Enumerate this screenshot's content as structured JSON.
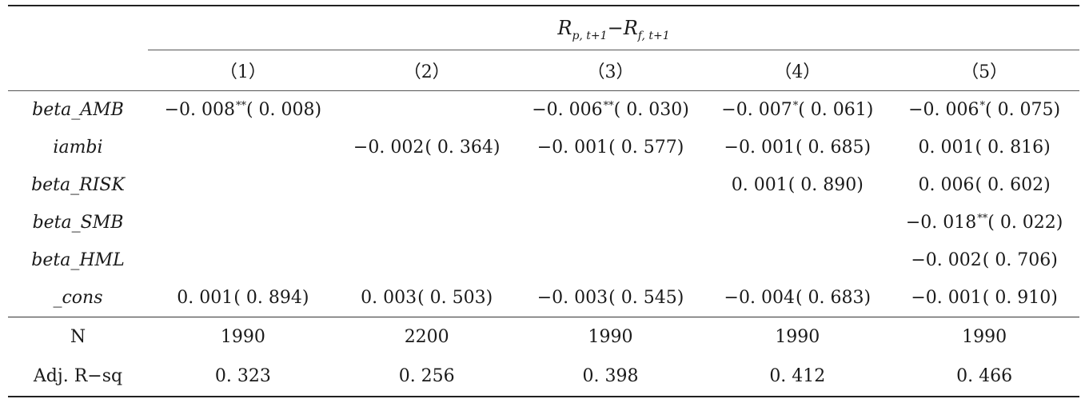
{
  "header": {
    "dependent_var": {
      "r1": "R",
      "r1_sub": "p, t+1",
      "minus": "−",
      "r2": "R",
      "r2_sub": "f, t+1"
    },
    "columns": [
      "（1）",
      "（2）",
      "（3）",
      "（4）",
      "（5）"
    ]
  },
  "rows": [
    {
      "label": "beta_AMB",
      "cells": [
        {
          "coef": "−0. 008",
          "stars": "**",
          "p": "( 0. 008)"
        },
        {
          "coef": "",
          "stars": "",
          "p": ""
        },
        {
          "coef": "−0. 006",
          "stars": "**",
          "p": "( 0. 030)"
        },
        {
          "coef": "−0. 007",
          "stars": "*",
          "p": "( 0. 061)"
        },
        {
          "coef": "−0. 006",
          "stars": "*",
          "p": "( 0. 075)"
        }
      ]
    },
    {
      "label": "iambi",
      "cells": [
        {
          "coef": "",
          "stars": "",
          "p": ""
        },
        {
          "coef": "−0. 002",
          "stars": "",
          "p": "( 0. 364)"
        },
        {
          "coef": "−0. 001",
          "stars": "",
          "p": "( 0. 577)"
        },
        {
          "coef": "−0. 001",
          "stars": "",
          "p": "( 0. 685)"
        },
        {
          "coef": "0. 001",
          "stars": "",
          "p": "( 0. 816)"
        }
      ]
    },
    {
      "label": "beta_RISK",
      "cells": [
        {
          "coef": "",
          "stars": "",
          "p": ""
        },
        {
          "coef": "",
          "stars": "",
          "p": ""
        },
        {
          "coef": "",
          "stars": "",
          "p": ""
        },
        {
          "coef": "0. 001",
          "stars": "",
          "p": "( 0. 890)"
        },
        {
          "coef": "0. 006",
          "stars": "",
          "p": "( 0. 602)"
        }
      ]
    },
    {
      "label": "beta_SMB",
      "cells": [
        {
          "coef": "",
          "stars": "",
          "p": ""
        },
        {
          "coef": "",
          "stars": "",
          "p": ""
        },
        {
          "coef": "",
          "stars": "",
          "p": ""
        },
        {
          "coef": "",
          "stars": "",
          "p": ""
        },
        {
          "coef": "−0. 018",
          "stars": "**",
          "p": "( 0. 022)"
        }
      ]
    },
    {
      "label": "beta_HML",
      "cells": [
        {
          "coef": "",
          "stars": "",
          "p": ""
        },
        {
          "coef": "",
          "stars": "",
          "p": ""
        },
        {
          "coef": "",
          "stars": "",
          "p": ""
        },
        {
          "coef": "",
          "stars": "",
          "p": ""
        },
        {
          "coef": "−0. 002",
          "stars": "",
          "p": "( 0. 706)"
        }
      ]
    },
    {
      "label": "_cons",
      "cells": [
        {
          "coef": "0. 001",
          "stars": "",
          "p": "( 0. 894)"
        },
        {
          "coef": "0. 003",
          "stars": "",
          "p": "( 0. 503)"
        },
        {
          "coef": "−0. 003",
          "stars": "",
          "p": "( 0. 545)"
        },
        {
          "coef": "−0. 004",
          "stars": "",
          "p": "( 0. 683)"
        },
        {
          "coef": "−0. 001",
          "stars": "",
          "p": "( 0. 910)"
        }
      ]
    }
  ],
  "stats": [
    {
      "label": "N",
      "values": [
        "1990",
        "2200",
        "1990",
        "1990",
        "1990"
      ]
    },
    {
      "label": "Adj. R−sq",
      "values": [
        "0. 323",
        "0. 256",
        "0. 398",
        "0. 412",
        "0. 466"
      ]
    }
  ]
}
